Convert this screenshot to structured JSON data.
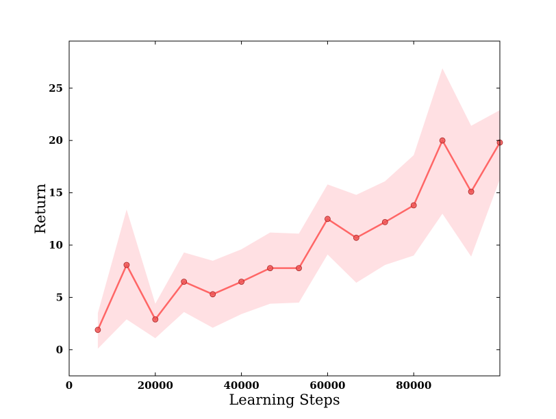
{
  "chart_data": {
    "type": "line",
    "title": "",
    "xlabel": "Learning Steps",
    "ylabel": "Return",
    "xlim": [
      0,
      100000
    ],
    "ylim": [
      -2.5,
      29.5
    ],
    "x_ticks": [
      0,
      20000,
      40000,
      60000,
      80000
    ],
    "y_ticks": [
      0,
      5,
      10,
      15,
      20,
      25
    ],
    "grid": false,
    "legend": "none",
    "series": [
      {
        "color": "#ff6666",
        "band_color": "#ffdde0",
        "x": [
          6667,
          13333,
          20000,
          26667,
          33333,
          40000,
          46667,
          53333,
          60000,
          66667,
          73333,
          80000,
          86667,
          93333,
          100000
        ],
        "y": [
          1.9,
          8.1,
          2.9,
          6.5,
          5.3,
          6.5,
          7.8,
          7.8,
          12.5,
          10.7,
          12.2,
          13.8,
          20.0,
          15.1,
          19.8
        ],
        "lower": [
          0.1,
          2.9,
          1.1,
          3.6,
          2.1,
          3.4,
          4.4,
          4.5,
          9.1,
          6.4,
          8.1,
          9.0,
          13.0,
          8.9,
          16.3
        ],
        "upper": [
          3.5,
          13.4,
          4.4,
          9.3,
          8.5,
          9.6,
          11.2,
          11.1,
          15.8,
          14.8,
          16.1,
          18.6,
          26.9,
          21.4,
          22.9
        ]
      }
    ]
  }
}
